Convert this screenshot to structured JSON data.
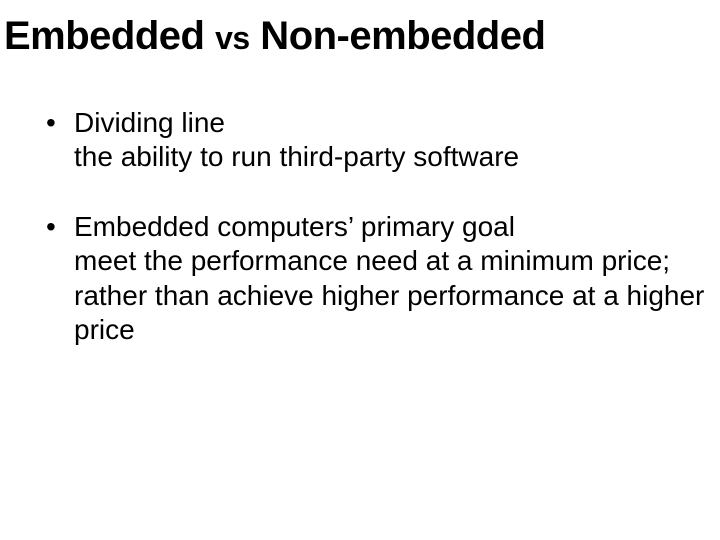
{
  "title": {
    "left": "Embedded ",
    "vs": "vs",
    "right": " Non-embedded"
  },
  "bullets": [
    {
      "head": "Dividing line",
      "lines": [
        "the ability to run third-party software"
      ]
    },
    {
      "head": "Embedded computers’ primary goal",
      "lines": [
        "meet the performance need at a minimum price;",
        "rather than achieve higher performance at a higher price"
      ]
    }
  ],
  "style": {
    "background": "#ffffff",
    "text_color": "#000000",
    "title_fontsize": 40,
    "vs_fontsize": 32,
    "body_fontsize": 28,
    "font_family": "Verdana"
  }
}
